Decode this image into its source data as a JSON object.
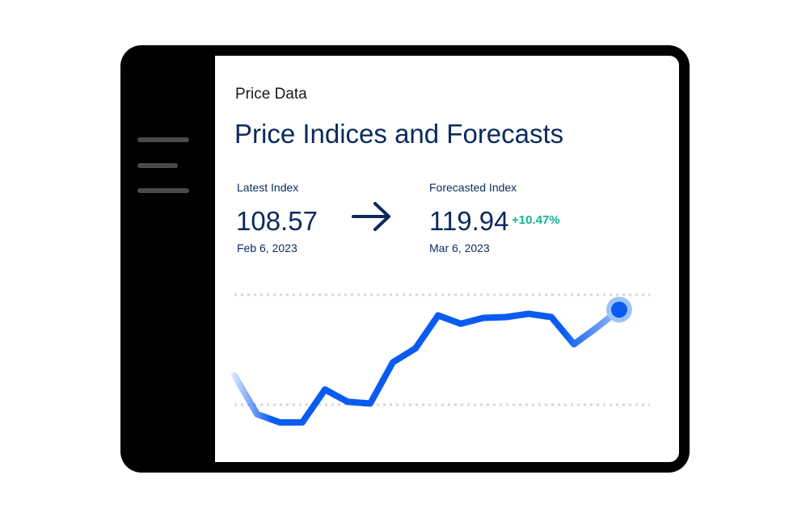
{
  "sidebar": {
    "menu_icon": "hamburger-menu-icon"
  },
  "header": {
    "section_label": "Price Data",
    "title": "Price Indices and Forecasts"
  },
  "metrics": {
    "latest": {
      "label": "Latest Index",
      "value": "108.57",
      "date": "Feb 6, 2023"
    },
    "arrow_icon": "arrow-right-icon",
    "forecast": {
      "label": "Forecasted Index",
      "value": "119.94",
      "date": "Mar 6, 2023",
      "change": "+10.47%"
    }
  },
  "colors": {
    "title": "#0c2a5c",
    "line": "#0a5cf0",
    "positive": "#16b39a",
    "gridline": "#d4d6e0"
  },
  "chart_data": {
    "type": "line",
    "grid": true,
    "series": [
      {
        "values": [
          0.62,
          0.15,
          0.05,
          0.05,
          0.45,
          0.3,
          0.28,
          0.78,
          0.95,
          1.35,
          1.25,
          1.32,
          1.33,
          1.37,
          1.33,
          1.0,
          1.2,
          1.42
        ]
      }
    ],
    "highlight": "last-point"
  }
}
